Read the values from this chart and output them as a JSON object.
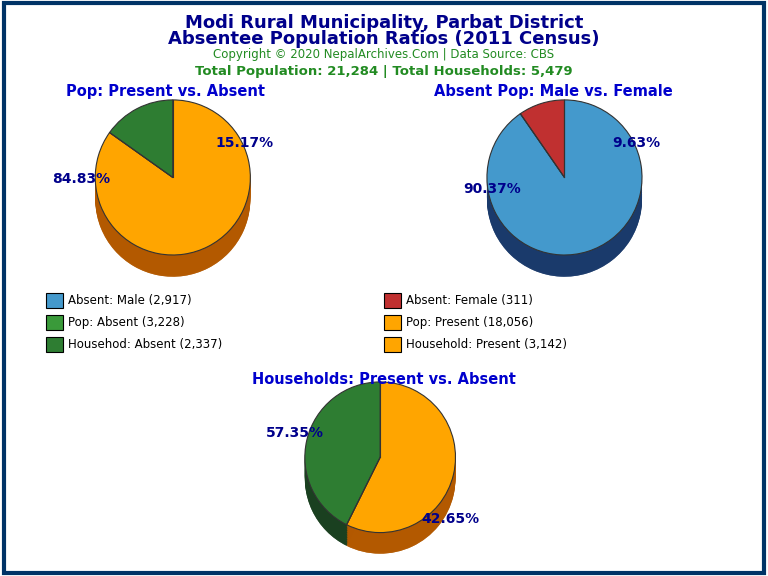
{
  "title_line1": "Modi Rural Municipality, Parbat District",
  "title_line2": "Absentee Population Ratios (2011 Census)",
  "copyright": "Copyright © 2020 NepalArchives.Com | Data Source: CBS",
  "stats": "Total Population: 21,284 | Total Households: 5,479",
  "title_color": "#00008B",
  "copyright_color": "#228B22",
  "stats_color": "#228B22",
  "subtitle_color": "#0000CD",
  "label_color": "#00008B",
  "pie1_title": "Pop: Present vs. Absent",
  "pie2_title": "Absent Pop: Male vs. Female",
  "pie3_title": "Households: Present vs. Absent",
  "pie1_values": [
    18056,
    3228
  ],
  "pie1_colors": [
    "#FFA500",
    "#2E7D32"
  ],
  "pie1_dark_colors": [
    "#B35900",
    "#1A4020"
  ],
  "pie1_pct_labels": [
    "84.83%",
    "15.17%"
  ],
  "pie2_values": [
    2917,
    311
  ],
  "pie2_colors": [
    "#4499CC",
    "#C03030"
  ],
  "pie2_dark_colors": [
    "#1A3A6B",
    "#7A1010"
  ],
  "pie2_pct_labels": [
    "90.37%",
    "9.63%"
  ],
  "pie3_values": [
    3142,
    2337
  ],
  "pie3_colors": [
    "#FFA500",
    "#2E7D32"
  ],
  "pie3_dark_colors": [
    "#B35900",
    "#1A4020"
  ],
  "pie3_pct_labels": [
    "57.35%",
    "42.65%"
  ],
  "legend_items": [
    {
      "label": "Absent: Male (2,917)",
      "color": "#4499CC"
    },
    {
      "label": "Absent: Female (311)",
      "color": "#C03030"
    },
    {
      "label": "Pop: Absent (3,228)",
      "color": "#3A9A3A"
    },
    {
      "label": "Pop: Present (18,056)",
      "color": "#FFA500"
    },
    {
      "label": "Househod: Absent (2,337)",
      "color": "#2E7D32"
    },
    {
      "label": "Household: Present (3,142)",
      "color": "#FFA500"
    }
  ],
  "background_color": "#FFFFFF",
  "border_color": "#003366"
}
